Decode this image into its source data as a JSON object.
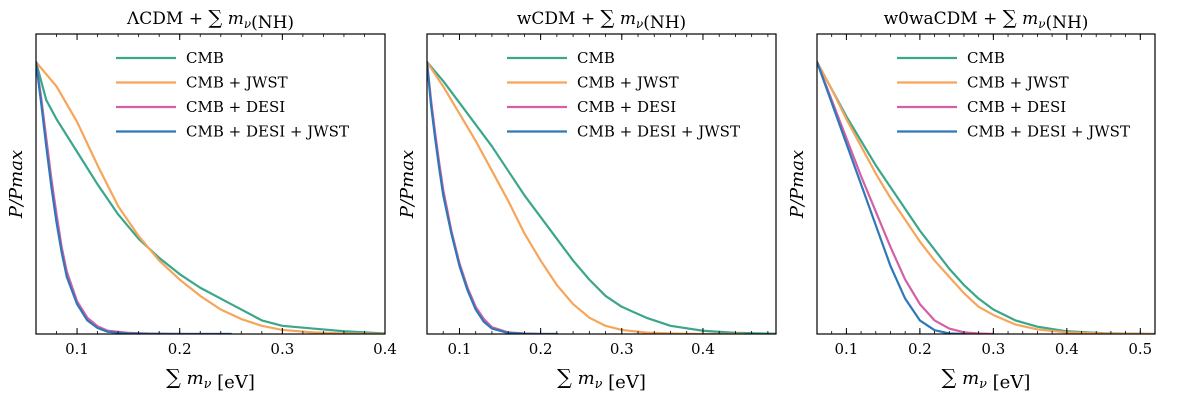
{
  "chart_data": [
    {
      "type": "line",
      "title": "ΛCDM + ∑ mν(NH)",
      "xlabel": "∑ mν [eV]",
      "ylabel": "P/Pmax",
      "xlim": [
        0.06,
        0.4
      ],
      "ylim": [
        0,
        1.0
      ],
      "xticks": [
        0.1,
        0.2,
        0.3,
        0.4
      ],
      "xtick_labels": [
        "0.1",
        "0.2",
        "0.3",
        "0.4"
      ],
      "legend_position": "top-center",
      "series": [
        {
          "name": "CMB",
          "color": "#3aa68b",
          "x": [
            0.06,
            0.07,
            0.08,
            0.1,
            0.12,
            0.14,
            0.16,
            0.18,
            0.2,
            0.22,
            0.25,
            0.28,
            0.3,
            0.33,
            0.36,
            0.4
          ],
          "y": [
            1.0,
            0.86,
            0.79,
            0.67,
            0.55,
            0.44,
            0.35,
            0.28,
            0.22,
            0.17,
            0.11,
            0.05,
            0.03,
            0.02,
            0.01,
            0.002
          ]
        },
        {
          "name": "CMB + JWST",
          "color": "#f7a55a",
          "x": [
            0.06,
            0.08,
            0.1,
            0.12,
            0.14,
            0.16,
            0.18,
            0.2,
            0.22,
            0.24,
            0.26,
            0.28,
            0.3,
            0.33,
            0.36,
            0.4
          ],
          "y": [
            1.0,
            0.91,
            0.78,
            0.62,
            0.47,
            0.36,
            0.27,
            0.2,
            0.14,
            0.09,
            0.055,
            0.03,
            0.015,
            0.006,
            0.002,
            0.0
          ]
        },
        {
          "name": "CMB + DESI",
          "color": "#d45fa5",
          "x": [
            0.06,
            0.065,
            0.07,
            0.075,
            0.08,
            0.085,
            0.09,
            0.1,
            0.11,
            0.12,
            0.13,
            0.15,
            0.17,
            0.2,
            0.25
          ],
          "y": [
            1.0,
            0.87,
            0.72,
            0.57,
            0.44,
            0.32,
            0.23,
            0.12,
            0.06,
            0.028,
            0.012,
            0.004,
            0.0015,
            0.0,
            0.0
          ]
        },
        {
          "name": "CMB + DESI + JWST",
          "color": "#2f78b7",
          "x": [
            0.06,
            0.065,
            0.07,
            0.075,
            0.08,
            0.085,
            0.09,
            0.1,
            0.11,
            0.12,
            0.13,
            0.15,
            0.17,
            0.2,
            0.25
          ],
          "y": [
            1.0,
            0.85,
            0.69,
            0.54,
            0.41,
            0.3,
            0.21,
            0.11,
            0.05,
            0.022,
            0.008,
            0.002,
            0.0005,
            0.0,
            0.0
          ]
        }
      ]
    },
    {
      "type": "line",
      "title": "wCDM + ∑ mν(NH)",
      "xlabel": "∑ mν [eV]",
      "ylabel": "P/Pmax",
      "xlim": [
        0.06,
        0.49
      ],
      "ylim": [
        0,
        1.0
      ],
      "xticks": [
        0.1,
        0.2,
        0.3,
        0.4
      ],
      "xtick_labels": [
        "0.1",
        "0.2",
        "0.3",
        "0.4"
      ],
      "legend_position": "top-center",
      "series": [
        {
          "name": "CMB",
          "color": "#3aa68b",
          "x": [
            0.06,
            0.08,
            0.1,
            0.12,
            0.14,
            0.16,
            0.18,
            0.2,
            0.22,
            0.24,
            0.26,
            0.28,
            0.3,
            0.33,
            0.36,
            0.4,
            0.44,
            0.49
          ],
          "y": [
            1.0,
            0.93,
            0.85,
            0.77,
            0.69,
            0.6,
            0.51,
            0.43,
            0.35,
            0.27,
            0.2,
            0.14,
            0.1,
            0.06,
            0.03,
            0.012,
            0.004,
            0.001
          ]
        },
        {
          "name": "CMB + JWST",
          "color": "#f7a55a",
          "x": [
            0.06,
            0.08,
            0.1,
            0.12,
            0.14,
            0.16,
            0.18,
            0.2,
            0.22,
            0.24,
            0.26,
            0.28,
            0.3,
            0.33,
            0.36,
            0.4,
            0.45
          ],
          "y": [
            1.0,
            0.91,
            0.81,
            0.71,
            0.6,
            0.49,
            0.37,
            0.27,
            0.18,
            0.11,
            0.06,
            0.03,
            0.015,
            0.005,
            0.002,
            0.0,
            0.0
          ]
        },
        {
          "name": "CMB + DESI",
          "color": "#d45fa5",
          "x": [
            0.06,
            0.065,
            0.07,
            0.075,
            0.08,
            0.09,
            0.1,
            0.11,
            0.12,
            0.13,
            0.14,
            0.16,
            0.18,
            0.2,
            0.22
          ],
          "y": [
            1.0,
            0.86,
            0.74,
            0.63,
            0.53,
            0.38,
            0.26,
            0.17,
            0.1,
            0.055,
            0.025,
            0.006,
            0.002,
            0.0,
            0.0
          ]
        },
        {
          "name": "CMB + DESI + JWST",
          "color": "#2f78b7",
          "x": [
            0.06,
            0.065,
            0.07,
            0.075,
            0.08,
            0.09,
            0.1,
            0.11,
            0.12,
            0.13,
            0.14,
            0.16,
            0.18,
            0.2,
            0.22
          ],
          "y": [
            1.0,
            0.84,
            0.72,
            0.61,
            0.51,
            0.37,
            0.25,
            0.16,
            0.09,
            0.045,
            0.02,
            0.004,
            0.001,
            0.0,
            0.0
          ]
        }
      ]
    },
    {
      "type": "line",
      "title": "w0waCDM + ∑ mν(NH)",
      "xlabel": "∑ mν [eV]",
      "ylabel": "P/Pmax",
      "xlim": [
        0.06,
        0.52
      ],
      "ylim": [
        0,
        1.0
      ],
      "xticks": [
        0.1,
        0.2,
        0.3,
        0.4,
        0.5
      ],
      "xtick_labels": [
        "0.1",
        "0.2",
        "0.3",
        "0.4",
        "0.5"
      ],
      "legend_position": "top-center",
      "series": [
        {
          "name": "CMB",
          "color": "#3aa68b",
          "x": [
            0.06,
            0.08,
            0.1,
            0.12,
            0.14,
            0.16,
            0.18,
            0.2,
            0.22,
            0.24,
            0.26,
            0.28,
            0.3,
            0.33,
            0.36,
            0.4,
            0.45,
            0.52
          ],
          "y": [
            1.0,
            0.9,
            0.8,
            0.71,
            0.62,
            0.54,
            0.46,
            0.38,
            0.31,
            0.24,
            0.18,
            0.13,
            0.09,
            0.05,
            0.027,
            0.01,
            0.003,
            0.0
          ]
        },
        {
          "name": "CMB + JWST",
          "color": "#f7a55a",
          "x": [
            0.06,
            0.08,
            0.1,
            0.12,
            0.14,
            0.16,
            0.18,
            0.2,
            0.22,
            0.24,
            0.26,
            0.28,
            0.3,
            0.33,
            0.36,
            0.4,
            0.45,
            0.52
          ],
          "y": [
            1.0,
            0.9,
            0.79,
            0.69,
            0.59,
            0.5,
            0.42,
            0.34,
            0.27,
            0.21,
            0.15,
            0.1,
            0.07,
            0.035,
            0.017,
            0.006,
            0.002,
            0.0
          ]
        },
        {
          "name": "CMB + DESI",
          "color": "#d45fa5",
          "x": [
            0.06,
            0.08,
            0.1,
            0.12,
            0.14,
            0.16,
            0.18,
            0.2,
            0.22,
            0.24,
            0.26,
            0.28,
            0.3
          ],
          "y": [
            1.0,
            0.86,
            0.72,
            0.58,
            0.45,
            0.32,
            0.2,
            0.11,
            0.05,
            0.02,
            0.006,
            0.002,
            0.0
          ]
        },
        {
          "name": "CMB + DESI + JWST",
          "color": "#2f78b7",
          "x": [
            0.06,
            0.08,
            0.1,
            0.12,
            0.14,
            0.16,
            0.18,
            0.2,
            0.22,
            0.24,
            0.26
          ],
          "y": [
            1.0,
            0.85,
            0.7,
            0.55,
            0.4,
            0.25,
            0.13,
            0.05,
            0.014,
            0.002,
            0.0
          ]
        }
      ]
    }
  ]
}
